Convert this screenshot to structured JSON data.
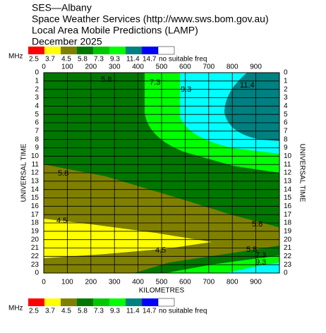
{
  "header": {
    "lines": [
      "SES—Albany",
      "Space Weather Services (http://www.sws.bom.gov.au)",
      "Local Area Mobile Predictions (LAMP)",
      "December 2025"
    ]
  },
  "legend": {
    "title": "MHz",
    "levels": [
      2.5,
      3.7,
      4.5,
      5.8,
      7.3,
      9.3,
      11.4,
      14.7
    ],
    "none_label": "no suitable freq",
    "colors": [
      "#ff0000",
      "#ffff00",
      "#808000",
      "#007800",
      "#00c800",
      "#00ff00",
      "#008080",
      "#0000ff",
      "#ffffff"
    ]
  },
  "chart_data": {
    "type": "contour",
    "xlabel": "KILOMETRES",
    "ylabel": "UNIVERSAL TIME",
    "xlim": [
      0,
      1000
    ],
    "ylim": [
      0,
      24
    ],
    "xticks": [
      0,
      100,
      200,
      300,
      400,
      500,
      600,
      700,
      800,
      900
    ],
    "yticks": [
      0,
      1,
      2,
      3,
      4,
      5,
      6,
      7,
      8,
      9,
      10,
      11,
      12,
      13,
      14,
      15,
      16,
      17,
      18,
      19,
      20,
      21,
      22,
      23,
      {
        "value": 24,
        "label": "0"
      }
    ],
    "contour_labels": [
      5.8,
      7.3,
      9.3,
      11.4,
      5.8,
      5.8,
      4.5,
      4.5,
      5.8,
      7.3,
      9.3
    ]
  }
}
